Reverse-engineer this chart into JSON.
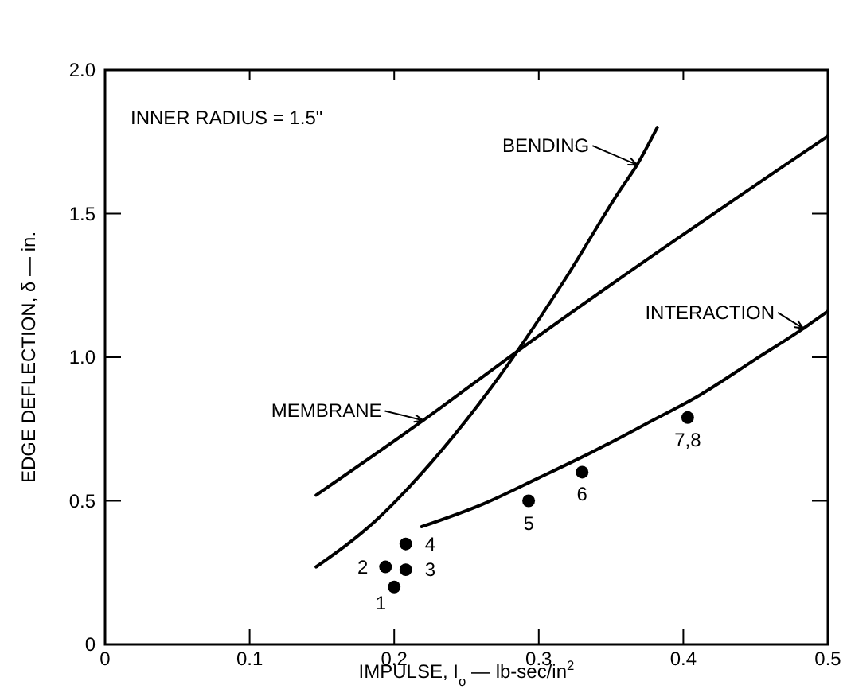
{
  "chart_data": {
    "type": "line",
    "xlabel": "IMPULSE, I$_{o}$ — lb-sec/in$^{2}$",
    "ylabel": "EDGE DEFLECTION, δ — in.",
    "xlim": [
      0,
      0.5
    ],
    "ylim": [
      0,
      2.0
    ],
    "xticks": [
      0,
      0.1,
      0.2,
      0.3,
      0.4,
      0.5
    ],
    "yticks": [
      0,
      0.5,
      {
        "value": 1,
        "label": "1.0"
      },
      1.5,
      {
        "value": 2,
        "label": "2.0"
      }
    ],
    "grid": false,
    "legend": "top right",
    "series": [
      {
        "name": "BENDING",
        "color": "#000000",
        "x": [
          0.146,
          0.187,
          0.225,
          0.262,
          0.285,
          0.318,
          0.356,
          0.368,
          0.382
        ],
        "values": [
          0.27,
          0.43,
          0.63,
          0.86,
          1.02,
          1.27,
          1.58,
          1.67,
          1.8
        ]
      },
      {
        "name": "MEMBRANE",
        "color": "#000000",
        "x": [
          0.146,
          0.22,
          0.285,
          0.5
        ],
        "values": [
          0.52,
          0.78,
          1.02,
          1.77
        ]
      },
      {
        "name": "INTERACTION",
        "color": "#000000",
        "x": [
          0.219,
          0.262,
          0.3,
          0.337,
          0.375,
          0.412,
          0.449,
          0.483,
          0.5
        ],
        "values": [
          0.41,
          0.49,
          0.58,
          0.67,
          0.77,
          0.87,
          0.99,
          1.1,
          1.16
        ]
      },
      {
        "type": "scatter",
        "marker": "circle",
        "color": "#000000",
        "x": [
          0.2,
          0.194,
          0.208,
          0.208,
          0.293,
          0.33,
          0.403
        ],
        "values": [
          0.2,
          0.27,
          0.26,
          0.35,
          0.5,
          0.6,
          0.79
        ]
      }
    ],
    "annotations": [
      "INNER RADIUS = 1.5\"",
      {
        "text": "1",
        "x": 0.2,
        "y": 0.2
      },
      {
        "text": "2",
        "x": 0.194,
        "y": 0.27
      },
      {
        "text": "3",
        "x": 0.208,
        "y": 0.26
      },
      {
        "text": "4",
        "x": 0.208,
        "y": 0.35
      },
      {
        "text": "5",
        "x": 0.293,
        "y": 0.5
      },
      {
        "text": "6",
        "x": 0.33,
        "y": 0.6
      },
      {
        "text": "7,8",
        "x": 0.403,
        "y": 0.79
      }
    ]
  }
}
